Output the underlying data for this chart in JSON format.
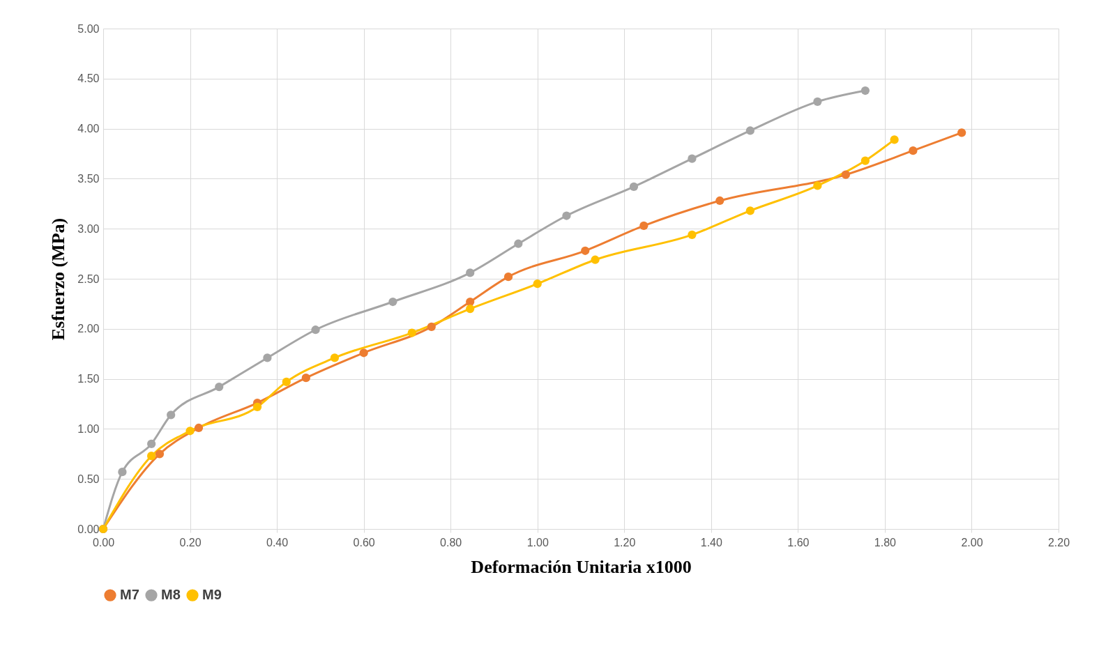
{
  "chart_data": {
    "type": "line",
    "xlabel": "Deformación Unitaria x1000",
    "ylabel": "Esfuerzo (MPa)",
    "series": [
      {
        "name": "M7",
        "color": "#ed7d31",
        "x": [
          0,
          0.13,
          0.22,
          0.355,
          0.467,
          0.6,
          0.756,
          0.845,
          0.933,
          1.11,
          1.245,
          1.42,
          1.71,
          1.865,
          1.977
        ],
        "values": [
          0,
          0.75,
          1.01,
          1.26,
          1.51,
          1.76,
          2.02,
          2.27,
          2.52,
          2.78,
          3.03,
          3.28,
          3.54,
          3.78,
          3.96
        ]
      },
      {
        "name": "M8",
        "color": "#a5a5a5",
        "x": [
          0,
          0.044,
          0.111,
          0.156,
          0.267,
          0.378,
          0.489,
          0.667,
          0.845,
          0.956,
          1.067,
          1.222,
          1.356,
          1.49,
          1.645,
          1.755
        ],
        "values": [
          0,
          0.57,
          0.85,
          1.14,
          1.42,
          1.71,
          1.99,
          2.27,
          2.56,
          2.85,
          3.13,
          3.42,
          3.7,
          3.98,
          4.27,
          4.38
        ]
      },
      {
        "name": "M9",
        "color": "#ffc000",
        "x": [
          0,
          0.111,
          0.2,
          0.355,
          0.422,
          0.533,
          0.711,
          0.845,
          1.0,
          1.133,
          1.356,
          1.49,
          1.645,
          1.755,
          1.822
        ],
        "values": [
          0,
          0.73,
          0.98,
          1.22,
          1.47,
          1.71,
          1.96,
          2.2,
          2.45,
          2.69,
          2.94,
          3.18,
          3.43,
          3.68,
          3.89
        ]
      }
    ],
    "xlim": [
      0,
      2.2
    ],
    "xticks": [
      {
        "value": 0,
        "label": "0.00"
      },
      {
        "value": 0.2,
        "label": "0.20"
      },
      {
        "value": 0.4,
        "label": "0.40"
      },
      {
        "value": 0.6,
        "label": "0.60"
      },
      {
        "value": 0.8,
        "label": "0.80"
      },
      {
        "value": 1,
        "label": "1.00"
      },
      {
        "value": 1.2,
        "label": "1.20"
      },
      {
        "value": 1.4,
        "label": "1.40"
      },
      {
        "value": 1.6,
        "label": "1.60"
      },
      {
        "value": 1.8,
        "label": "1.80"
      },
      {
        "value": 2,
        "label": "2.00"
      },
      {
        "value": 2.2,
        "label": "2.20"
      }
    ],
    "ylim": [
      0,
      5
    ],
    "yticks": [
      {
        "value": 0,
        "label": "0.00"
      },
      {
        "value": 0.5,
        "label": "0.50"
      },
      {
        "value": 1,
        "label": "1.00"
      },
      {
        "value": 1.5,
        "label": "1.50"
      },
      {
        "value": 2,
        "label": "2.00"
      },
      {
        "value": 2.5,
        "label": "2.50"
      },
      {
        "value": 3,
        "label": "3.00"
      },
      {
        "value": 3.5,
        "label": "3.50"
      },
      {
        "value": 4,
        "label": "4.00"
      },
      {
        "value": 4.5,
        "label": "4.50"
      },
      {
        "value": 5,
        "label": "5.00"
      }
    ],
    "grid": true,
    "legend": "bottom",
    "marker": "circle",
    "line_style": "solid"
  }
}
